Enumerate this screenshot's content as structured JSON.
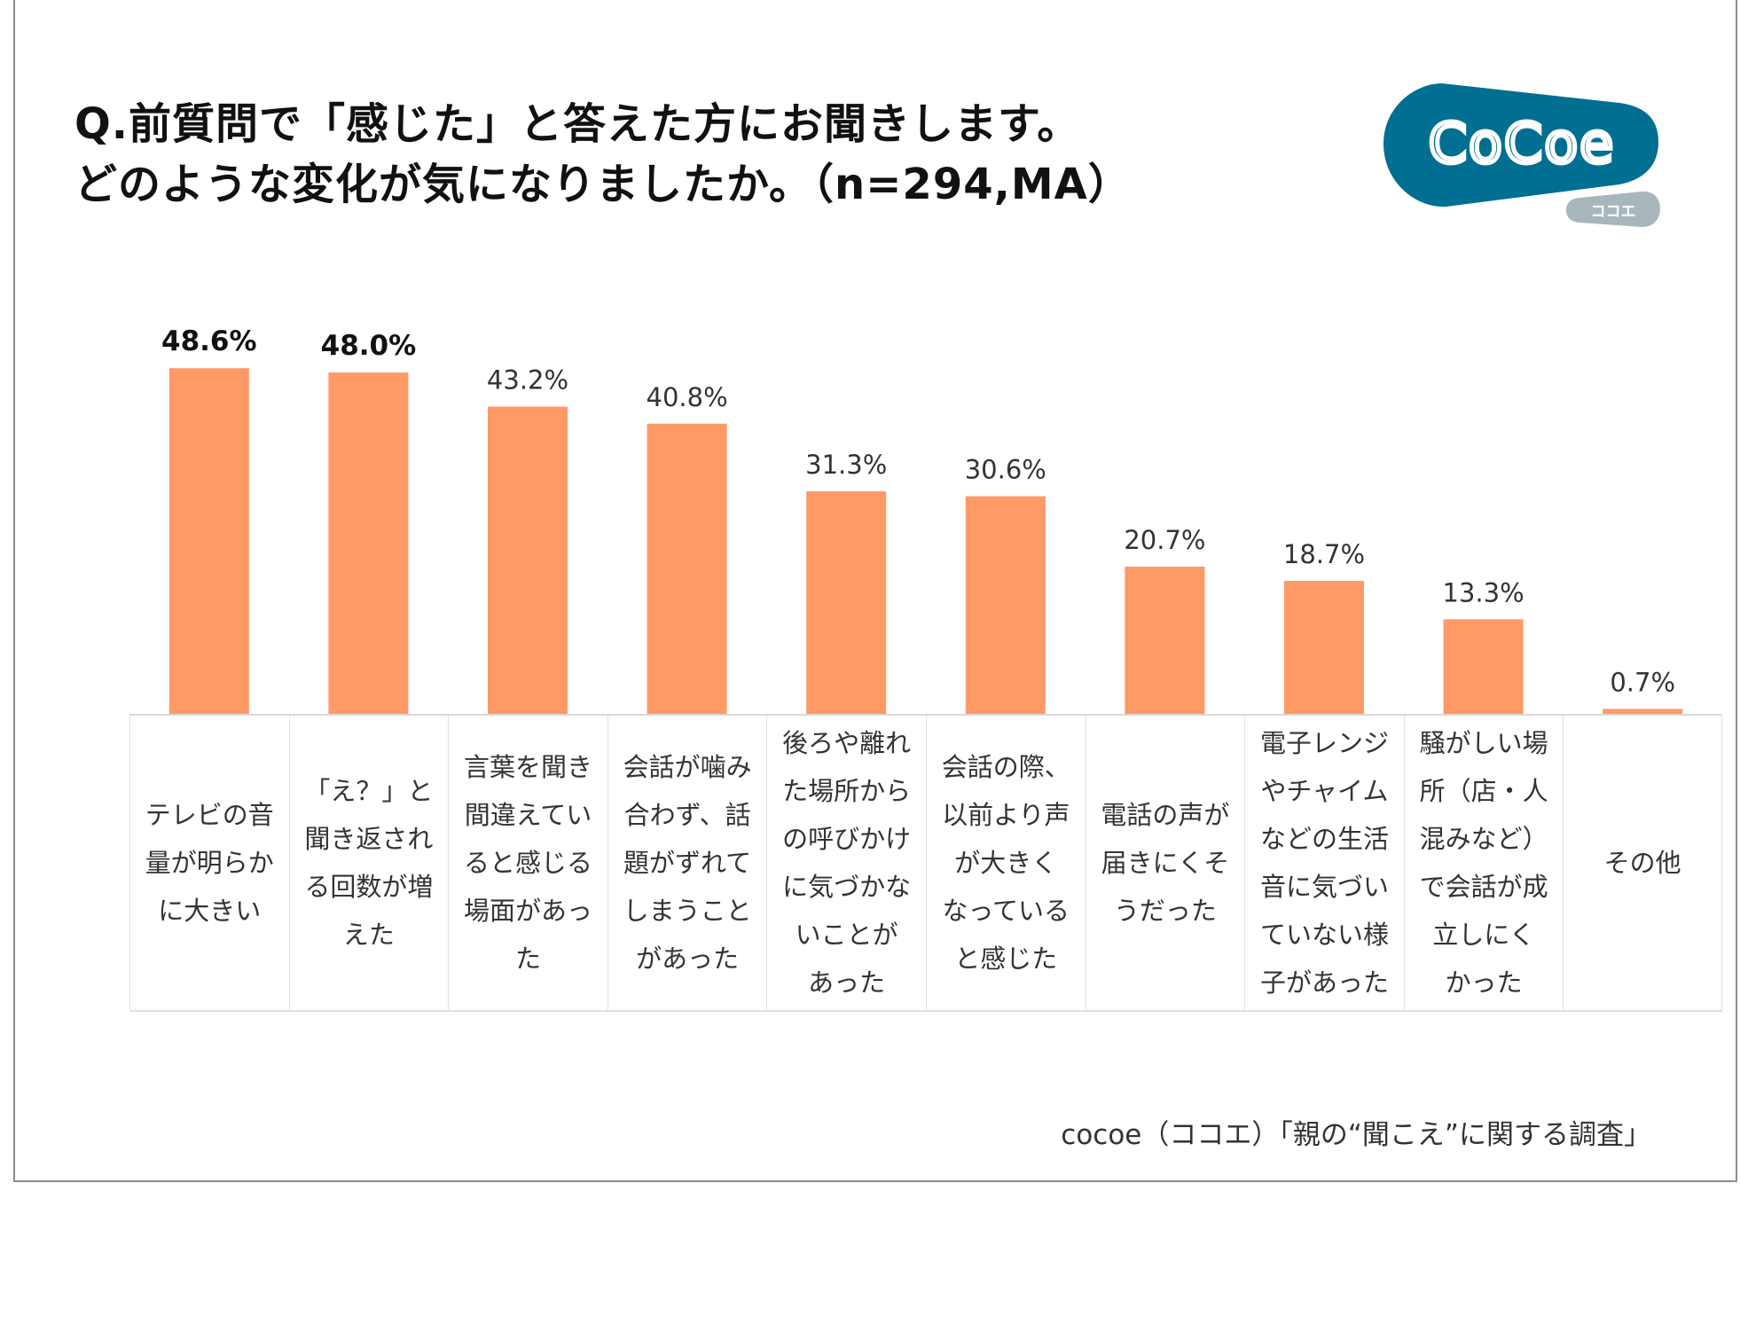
{
  "title": {
    "line1": "Q.前質問で「感じた」と答えた方にお聞きします。",
    "line2": "どのような変化が気になりましたか。（n=294,MA）"
  },
  "logo": {
    "text": "CoCoe",
    "subtext": "ココエ",
    "color": "#006f91",
    "sub_color": "#a8b7bc"
  },
  "source": "cocoe（ココエ）「親の“聞こえ”に関する調査」",
  "chart_data": {
    "type": "bar",
    "bar_color": "#ff9966",
    "ylim": [
      0,
      50
    ],
    "grid": false,
    "categories": [
      [
        "テレビの音",
        "量が明らか",
        "に大きい"
      ],
      [
        "「え？」と",
        "聞き返され",
        "る回数が増",
        "えた"
      ],
      [
        "言葉を聞き",
        "間違えてい",
        "ると感じる",
        "場面があっ",
        "た"
      ],
      [
        "会話が噛み",
        "合わず、話",
        "題がずれて",
        "しまうこと",
        "があった"
      ],
      [
        "後ろや離れ",
        "た場所から",
        "の呼びかけ",
        "に気づかな",
        "いことが",
        "あった"
      ],
      [
        "会話の際、",
        "以前より声",
        "が大きく",
        "なっている",
        "と感じた"
      ],
      [
        "電話の声が",
        "届きにくそ",
        "うだった"
      ],
      [
        "電子レンジ",
        "やチャイム",
        "などの生活",
        "音に気づい",
        "ていない様",
        "子があった"
      ],
      [
        "騒がしい場",
        "所（店・人",
        "混みなど）",
        "で会話が成",
        "立しにく",
        "かった"
      ],
      [
        "その他"
      ]
    ],
    "values": [
      48.6,
      48.0,
      43.2,
      40.8,
      31.3,
      30.6,
      20.7,
      18.7,
      13.3,
      0.7
    ],
    "data_labels": [
      "48.6%",
      "48.0%",
      "43.2%",
      "40.8%",
      "31.3%",
      "30.6%",
      "20.7%",
      "18.7%",
      "13.3%",
      "0.7%"
    ]
  }
}
